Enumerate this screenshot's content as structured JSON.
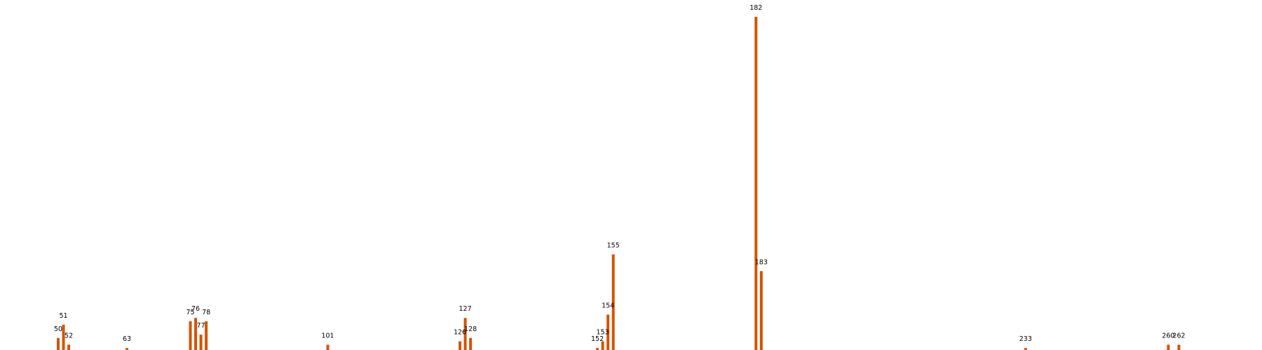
{
  "chart_data": {
    "type": "bar",
    "title": "",
    "xlabel": "",
    "ylabel": "",
    "grid": false,
    "axes_visible": false,
    "bar_color": "#d35400",
    "xlim": [
      40,
      272
    ],
    "ylim": [
      0,
      100
    ],
    "points": [
      {
        "x": 50,
        "y": 4,
        "label": "50"
      },
      {
        "x": 51,
        "y": 8,
        "label": "51"
      },
      {
        "x": 52,
        "y": 2,
        "label": "52"
      },
      {
        "x": 63,
        "y": 1,
        "label": "63"
      },
      {
        "x": 75,
        "y": 9,
        "label": "75"
      },
      {
        "x": 76,
        "y": 10,
        "label": "76"
      },
      {
        "x": 77,
        "y": 5,
        "label": "77"
      },
      {
        "x": 78,
        "y": 9,
        "label": "78"
      },
      {
        "x": 101,
        "y": 2,
        "label": "101"
      },
      {
        "x": 126,
        "y": 3,
        "label": "126"
      },
      {
        "x": 127,
        "y": 10,
        "label": "127"
      },
      {
        "x": 128,
        "y": 4,
        "label": "128"
      },
      {
        "x": 152,
        "y": 1,
        "label": "152"
      },
      {
        "x": 153,
        "y": 3,
        "label": "153"
      },
      {
        "x": 154,
        "y": 11,
        "label": "154"
      },
      {
        "x": 155,
        "y": 29,
        "label": "155"
      },
      {
        "x": 182,
        "y": 100,
        "label": "182"
      },
      {
        "x": 183,
        "y": 24,
        "label": "183"
      },
      {
        "x": 233,
        "y": 1,
        "label": "233"
      },
      {
        "x": 260,
        "y": 2,
        "label": "260"
      },
      {
        "x": 262,
        "y": 2,
        "label": "262"
      }
    ]
  }
}
